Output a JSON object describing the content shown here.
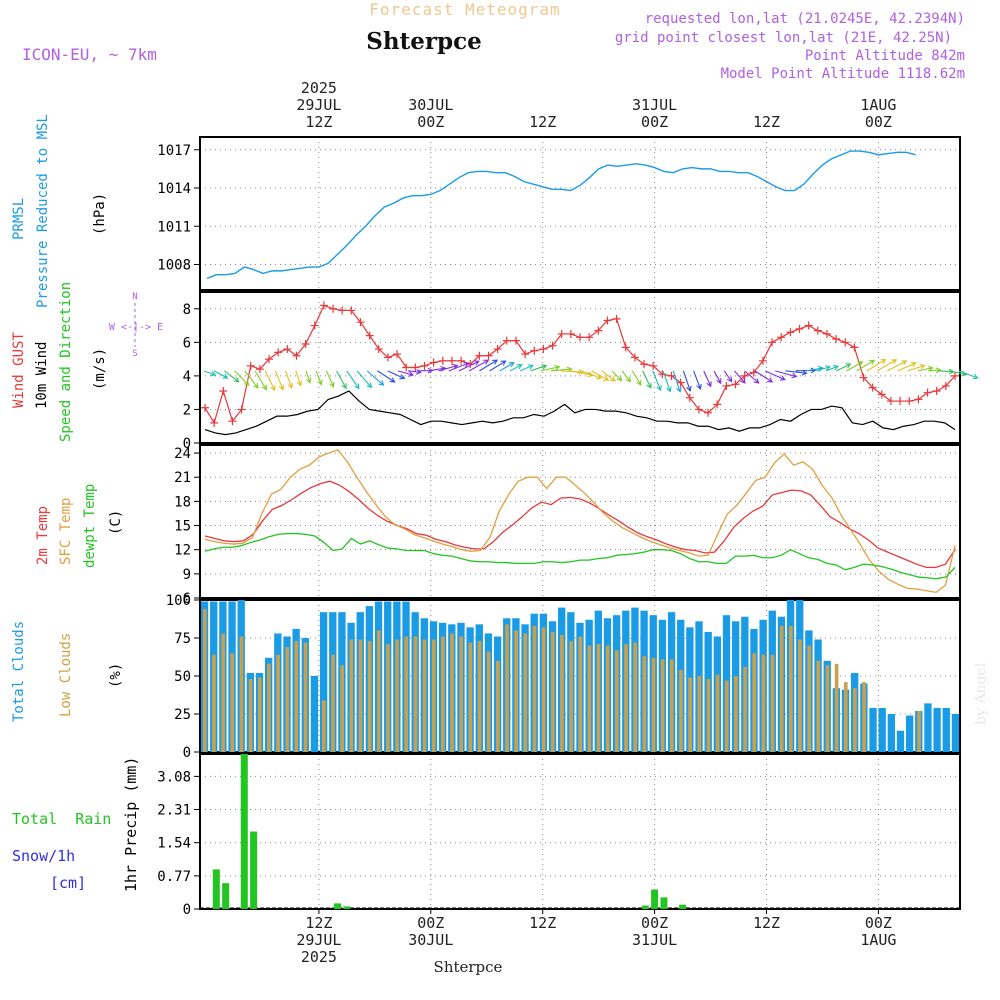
{
  "header": {
    "title": "Forecast Meteogram",
    "location": "Shterpce",
    "model": "ICON-EU, ~ 7km",
    "requested": "requested lon,lat (21.0245E, 42.2394N)",
    "gridpoint": "grid point closest lon,lat (21E, 42.25N)",
    "point_alt": "Point Altitude 842m",
    "model_alt": "Model Point Altitude 1118.62m",
    "footer": "Shterpce",
    "credit": "by Angel"
  },
  "time_axis": {
    "top": [
      {
        "t": 12,
        "lines": [
          "2025",
          "29JUL",
          "12Z"
        ]
      },
      {
        "t": 24,
        "lines": [
          "30JUL",
          "00Z"
        ]
      },
      {
        "t": 36,
        "lines": [
          "12Z"
        ]
      },
      {
        "t": 48,
        "lines": [
          "31JUL",
          "00Z"
        ]
      },
      {
        "t": 60,
        "lines": [
          "12Z"
        ]
      },
      {
        "t": 72,
        "lines": [
          "1AUG",
          "00Z"
        ]
      }
    ],
    "bottom": [
      {
        "t": 12,
        "lines": [
          "12Z",
          "29JUL",
          "2025"
        ]
      },
      {
        "t": 24,
        "lines": [
          "00Z",
          "30JUL"
        ]
      },
      {
        "t": 36,
        "lines": [
          "12Z"
        ]
      },
      {
        "t": 48,
        "lines": [
          "00Z",
          "31JUL"
        ]
      },
      {
        "t": 60,
        "lines": [
          "12Z"
        ]
      },
      {
        "t": 72,
        "lines": [
          "00Z",
          "1AUG"
        ]
      }
    ]
  },
  "panel_labels": {
    "pressure": {
      "line1": "PRMSL",
      "line2": "Pressure Reduced to MSL",
      "unit": "(hPa)",
      "color": "#1a9be6"
    },
    "wind": {
      "gust": "Wind GUST",
      "wind10": "10m Wind",
      "dir": "Speed and Direction",
      "unit": "(m/s)",
      "compass_n": "N",
      "compass_s": "S",
      "compass_we": "W <-|-> E"
    },
    "temp": {
      "t2m": "2m Temp",
      "sfc": "SFC Temp",
      "dewpt": "dewpt Temp",
      "unit": "(C)"
    },
    "clouds": {
      "total": "Total Clouds",
      "low": "Low Clouds",
      "unit": "(%)"
    },
    "precip": {
      "rain": "Total  Rain",
      "snow": "Snow/1h",
      "snow_unit": "[cm]",
      "axis": "1hr Precip (mm)"
    }
  },
  "colors": {
    "pressure": "#1a9be6",
    "gust": "#e8383a",
    "wind": "#000000",
    "t2m": "#e8383a",
    "sfc": "#e0a040",
    "dewpt": "#22c522",
    "total_clouds": "#1a9be6",
    "low_clouds": "#c8a050",
    "rain": "#22c522",
    "snow": "#3030e0",
    "purple": "#b060e0"
  },
  "chart_data": [
    {
      "type": "line",
      "name": "pressure",
      "ylim": [
        1006,
        1018
      ],
      "yticks": [
        "1008",
        "1011",
        "1014",
        "1017"
      ],
      "x": [
        0,
        1,
        2,
        3,
        4,
        5,
        6,
        7,
        8,
        9,
        10,
        11,
        12,
        13,
        14,
        15,
        16,
        17,
        18,
        19,
        20,
        21,
        22,
        23,
        24,
        25,
        26,
        27,
        28,
        29,
        30,
        31,
        32,
        33,
        34,
        35,
        36,
        37,
        38,
        39,
        40,
        41,
        42,
        43,
        44,
        45,
        46,
        47,
        48,
        49,
        50,
        51,
        52,
        53,
        54,
        55,
        56,
        57,
        58,
        59,
        60,
        61,
        62,
        63,
        64,
        65,
        66,
        67,
        68,
        69,
        70,
        71,
        72,
        73,
        74,
        75,
        76
      ],
      "values": [
        1006.9,
        1007.2,
        1007.2,
        1007.3,
        1007.8,
        1007.6,
        1007.3,
        1007.5,
        1007.5,
        1007.6,
        1007.7,
        1007.8,
        1007.8,
        1008.1,
        1008.8,
        1009.5,
        1010.3,
        1011.0,
        1011.8,
        1012.5,
        1012.8,
        1013.2,
        1013.4,
        1013.4,
        1013.5,
        1013.8,
        1014.3,
        1014.8,
        1015.2,
        1015.3,
        1015.3,
        1015.2,
        1015.2,
        1014.9,
        1014.5,
        1014.3,
        1014.1,
        1013.9,
        1013.9,
        1013.8,
        1014.2,
        1014.8,
        1015.5,
        1015.8,
        1015.7,
        1015.8,
        1015.9,
        1015.8,
        1015.6,
        1015.3,
        1015.2,
        1015.5,
        1015.6,
        1015.5,
        1015.5,
        1015.3,
        1015.3,
        1015.2,
        1015.2,
        1014.9,
        1014.5,
        1014.1,
        1013.8,
        1013.8,
        1014.3,
        1015.1,
        1015.8,
        1016.3,
        1016.6,
        1016.9,
        1016.9,
        1016.8,
        1016.6,
        1016.7,
        1016.8,
        1016.8,
        1016.6
      ]
    },
    {
      "type": "line",
      "name": "wind",
      "ylim": [
        0,
        9
      ],
      "yticks": [
        "0",
        "2",
        "4",
        "6",
        "8"
      ],
      "series": [
        {
          "name": "Wind GUST",
          "values": [
            2.1,
            1.2,
            3.1,
            1.3,
            2.0,
            4.6,
            4.4,
            5.0,
            5.4,
            5.6,
            5.2,
            5.9,
            7.0,
            8.2,
            8.0,
            7.9,
            7.9,
            7.2,
            6.4,
            5.6,
            5.1,
            5.3,
            4.5,
            4.5,
            4.6,
            4.8,
            4.9,
            4.9,
            4.9,
            4.7,
            5.2,
            5.2,
            5.6,
            6.1,
            6.1,
            5.3,
            5.5,
            5.6,
            5.8,
            6.5,
            6.5,
            6.3,
            6.3,
            6.7,
            7.3,
            7.4,
            5.7,
            5.1,
            4.7,
            4.6,
            4.1,
            4.0,
            3.6,
            2.7,
            2.0,
            1.8,
            2.3,
            3.4,
            3.5,
            4.0,
            4.2,
            4.9,
            6.0,
            6.3,
            6.6,
            6.8,
            7.0,
            6.7,
            6.5,
            6.2,
            6.0,
            5.7,
            3.9,
            3.3,
            2.9,
            2.5,
            2.5,
            2.5,
            2.6,
            3.0,
            3.1,
            3.4,
            4.0
          ]
        },
        {
          "name": "10m Wind",
          "values": [
            0.8,
            0.6,
            0.5,
            0.6,
            0.8,
            1.0,
            1.3,
            1.6,
            1.6,
            1.7,
            1.9,
            2.0,
            2.6,
            2.8,
            3.1,
            2.5,
            2.0,
            1.9,
            1.8,
            1.7,
            1.4,
            1.1,
            1.3,
            1.3,
            1.2,
            1.1,
            1.2,
            1.3,
            1.2,
            1.3,
            1.5,
            1.5,
            1.7,
            1.6,
            1.9,
            2.3,
            1.8,
            2.0,
            2.0,
            1.9,
            1.9,
            1.8,
            1.6,
            1.5,
            1.3,
            1.3,
            1.2,
            1.2,
            1.0,
            1.0,
            0.8,
            0.9,
            0.7,
            0.9,
            0.9,
            1.1,
            1.4,
            1.3,
            1.7,
            2.0,
            2.0,
            2.2,
            2.1,
            1.2,
            1.1,
            1.3,
            0.9,
            0.8,
            1.0,
            1.1,
            1.3,
            1.3,
            1.2,
            0.8
          ]
        }
      ]
    },
    {
      "type": "line",
      "name": "temperature",
      "ylim": [
        6,
        25
      ],
      "yticks": [
        "6",
        "9",
        "12",
        "15",
        "18",
        "21",
        "24"
      ],
      "series": [
        {
          "name": "2m Temp",
          "values": [
            13.7,
            13.4,
            13.1,
            13.0,
            13.1,
            13.9,
            15.6,
            17.0,
            17.5,
            18.2,
            19.0,
            19.7,
            20.2,
            20.5,
            20.0,
            19.2,
            18.2,
            17.1,
            16.2,
            15.5,
            15.0,
            14.6,
            14.0,
            13.8,
            13.3,
            13.0,
            12.6,
            12.3,
            12.1,
            12.1,
            13.0,
            14.2,
            15.1,
            16.1,
            17.2,
            17.9,
            17.6,
            18.4,
            18.5,
            18.3,
            17.8,
            17.1,
            16.3,
            15.6,
            14.8,
            14.1,
            13.6,
            13.2,
            12.7,
            12.3,
            12.0,
            11.9,
            11.6,
            11.7,
            13.1,
            14.8,
            15.9,
            16.8,
            17.4,
            18.8,
            19.1,
            19.4,
            19.3,
            18.8,
            17.5,
            16.1,
            15.4,
            14.6,
            14.0,
            13.2,
            12.2,
            11.7,
            11.2,
            10.7,
            10.2,
            9.8,
            9.8,
            10.2,
            12.0
          ]
        },
        {
          "name": "SFC Temp",
          "values": [
            13.3,
            13.0,
            12.8,
            12.7,
            12.8,
            13.5,
            16.5,
            18.9,
            19.5,
            21.0,
            22.0,
            22.5,
            23.5,
            24.0,
            24.4,
            22.9,
            21.0,
            19.2,
            17.6,
            16.1,
            15.1,
            14.6,
            13.9,
            13.5,
            13.1,
            12.7,
            12.4,
            12.0,
            11.8,
            11.9,
            13.5,
            16.8,
            18.9,
            20.5,
            21.0,
            21.0,
            19.6,
            21.0,
            21.0,
            20.0,
            19.0,
            17.8,
            16.5,
            15.5,
            14.7,
            14.1,
            13.5,
            13.0,
            12.6,
            12.2,
            11.9,
            11.6,
            11.2,
            11.3,
            13.9,
            16.4,
            17.5,
            19.0,
            20.6,
            21.0,
            22.8,
            23.9,
            22.5,
            22.9,
            22.0,
            20.0,
            18.5,
            16.3,
            14.5,
            12.7,
            10.7,
            9.3,
            8.3,
            7.7,
            7.2,
            7.1,
            6.9,
            6.7,
            7.6,
            12.5
          ]
        },
        {
          "name": "dewpt Temp",
          "values": [
            11.8,
            12.1,
            12.3,
            12.3,
            12.5,
            12.9,
            13.2,
            13.6,
            13.9,
            14.0,
            14.0,
            13.9,
            13.7,
            12.9,
            11.9,
            12.1,
            13.4,
            12.7,
            13.1,
            12.6,
            12.2,
            12.1,
            11.9,
            11.9,
            11.9,
            11.5,
            11.3,
            11.2,
            10.9,
            10.6,
            10.5,
            10.5,
            10.4,
            10.4,
            10.3,
            10.3,
            10.3,
            10.5,
            10.5,
            10.4,
            10.5,
            10.7,
            10.7,
            10.9,
            11.0,
            11.3,
            11.4,
            11.5,
            11.7,
            12.0,
            12.0,
            11.9,
            11.5,
            10.9,
            10.5,
            10.5,
            10.3,
            10.3,
            11.2,
            11.2,
            11.3,
            11.0,
            11.0,
            11.3,
            12.0,
            11.5,
            11.0,
            10.8,
            10.3,
            10.1,
            9.5,
            9.8,
            10.2,
            10.1,
            9.9,
            9.6,
            9.2,
            8.9,
            8.6,
            8.5,
            8.4,
            8.6,
            9.8
          ]
        }
      ]
    },
    {
      "type": "bar",
      "name": "clouds",
      "ylim": [
        0,
        100
      ],
      "yticks": [
        "0",
        "25",
        "50",
        "75",
        "100"
      ],
      "series": [
        {
          "name": "Total Clouds",
          "values": [
            99,
            99,
            99,
            99,
            100,
            52,
            52,
            62,
            78,
            76,
            81,
            75,
            50,
            92,
            92,
            92,
            85,
            92,
            96,
            99,
            99,
            99,
            99,
            92,
            88,
            86,
            85,
            84,
            85,
            82,
            84,
            78,
            76,
            88,
            88,
            84,
            91,
            91,
            86,
            95,
            92,
            85,
            87,
            93,
            88,
            90,
            93,
            95,
            93,
            90,
            87,
            92,
            87,
            82,
            86,
            79,
            76,
            90,
            86,
            89,
            81,
            87,
            93,
            89,
            100,
            100,
            80,
            74,
            60,
            42,
            41,
            52,
            45,
            29,
            29,
            25,
            14,
            24,
            27,
            32,
            29,
            29,
            25
          ]
        },
        {
          "name": "Low Clouds",
          "values": [
            94,
            64,
            78,
            65,
            76,
            48,
            49,
            58,
            64,
            69,
            73,
            72,
            0,
            34,
            64,
            57,
            74,
            74,
            73,
            80,
            71,
            74,
            76,
            76,
            74,
            74,
            76,
            78,
            76,
            72,
            73,
            66,
            60,
            84,
            80,
            78,
            83,
            82,
            79,
            77,
            73,
            76,
            70,
            71,
            70,
            67,
            71,
            72,
            63,
            62,
            61,
            61,
            54,
            49,
            50,
            48,
            51,
            47,
            50,
            56,
            65,
            64,
            64,
            83,
            83,
            74,
            70,
            60,
            57,
            58,
            46,
            42,
            46,
            0,
            0,
            0,
            0,
            0,
            27,
            0,
            0,
            0,
            0
          ]
        }
      ]
    },
    {
      "type": "bar",
      "name": "precipitation",
      "ylim": [
        0,
        3.6
      ],
      "yticks": [
        "0",
        "0.77",
        "1.54",
        "2.31",
        "3.08"
      ],
      "series": [
        {
          "name": "Total Rain",
          "t": [
            1,
            2,
            4,
            5,
            14,
            15,
            47,
            48,
            49,
            51
          ],
          "values": [
            0.92,
            0.6,
            3.6,
            1.8,
            0.13,
            0.06,
            0.08,
            0.45,
            0.27,
            0.1
          ]
        }
      ]
    }
  ]
}
